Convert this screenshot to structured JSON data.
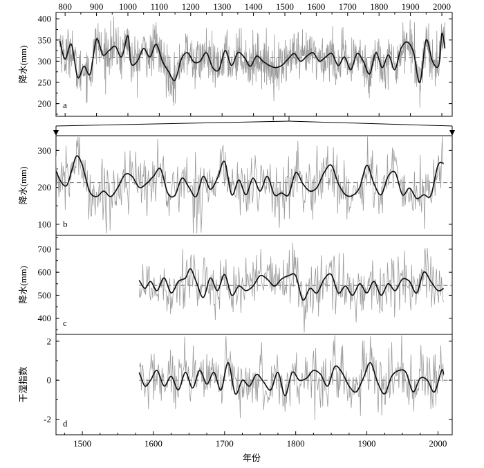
{
  "figure": {
    "top_axis_ticks": [
      "800",
      "900",
      "1000",
      "1100",
      "1200",
      "1300",
      "1400",
      "1500",
      "1600",
      "1700",
      "1800",
      "1900",
      "2000"
    ],
    "bottom_axis_ticks": [
      "1500",
      "1600",
      "1700",
      "1800",
      "1900",
      "2000"
    ],
    "xlabel": "年份"
  },
  "colors": {
    "raw": "#9a9a9a",
    "smooth": "#111111",
    "axis": "#000000",
    "mean_line": "#555555"
  },
  "chart_data": [
    {
      "type": "line",
      "panel_letter": "a",
      "ylabel": "降水(mm)",
      "xlim": [
        770,
        2030
      ],
      "ylim": [
        170,
        415
      ],
      "yticks": [
        200,
        250,
        300,
        350,
        400
      ],
      "mean": 308,
      "series": [
        {
          "style": "annual-raw",
          "x": [],
          "values": []
        },
        {
          "style": "smoothed",
          "x": [
            783,
            800,
            820,
            840,
            860,
            880,
            900,
            920,
            940,
            960,
            980,
            1000,
            1010,
            1030,
            1050,
            1070,
            1090,
            1110,
            1130,
            1150,
            1170,
            1190,
            1210,
            1230,
            1250,
            1270,
            1290,
            1310,
            1330,
            1350,
            1370,
            1390,
            1410,
            1430,
            1450,
            1470,
            1490,
            1510,
            1530,
            1550,
            1570,
            1590,
            1610,
            1630,
            1650,
            1670,
            1690,
            1710,
            1730,
            1750,
            1770,
            1790,
            1810,
            1830,
            1850,
            1870,
            1890,
            1910,
            1930,
            1950,
            1970,
            1990,
            2000,
            2010
          ],
          "values": [
            348,
            305,
            340,
            262,
            288,
            270,
            352,
            315,
            325,
            335,
            310,
            360,
            295,
            300,
            330,
            310,
            340,
            300,
            275,
            255,
            305,
            320,
            298,
            300,
            320,
            285,
            280,
            325,
            290,
            320,
            310,
            288,
            312,
            300,
            290,
            285,
            290,
            305,
            318,
            300,
            312,
            320,
            300,
            310,
            318,
            290,
            310,
            280,
            318,
            300,
            270,
            320,
            285,
            315,
            280,
            330,
            345,
            320,
            250,
            350,
            300,
            290,
            365,
            330
          ]
        }
      ]
    },
    {
      "type": "line",
      "panel_letter": "b",
      "ylabel": "降水(mm)",
      "xlim": [
        1463,
        2020
      ],
      "ylim": [
        70,
        340
      ],
      "yticks": [
        100,
        200,
        300
      ],
      "mean": 213,
      "series": [
        {
          "style": "annual-raw",
          "x": [],
          "values": []
        },
        {
          "style": "smoothed",
          "x": [
            1463,
            1470,
            1478,
            1485,
            1492,
            1500,
            1510,
            1520,
            1530,
            1540,
            1550,
            1560,
            1570,
            1580,
            1590,
            1600,
            1610,
            1620,
            1630,
            1640,
            1650,
            1660,
            1670,
            1680,
            1690,
            1700,
            1710,
            1720,
            1730,
            1740,
            1750,
            1760,
            1770,
            1780,
            1790,
            1800,
            1810,
            1820,
            1830,
            1840,
            1850,
            1860,
            1870,
            1880,
            1890,
            1900,
            1910,
            1920,
            1930,
            1940,
            1950,
            1960,
            1970,
            1980,
            1990,
            2000,
            2008
          ],
          "values": [
            245,
            215,
            205,
            245,
            285,
            260,
            190,
            175,
            190,
            175,
            200,
            235,
            230,
            200,
            210,
            230,
            250,
            185,
            178,
            225,
            200,
            175,
            230,
            195,
            225,
            270,
            180,
            220,
            180,
            225,
            190,
            230,
            180,
            185,
            180,
            240,
            210,
            190,
            200,
            240,
            260,
            210,
            180,
            178,
            200,
            260,
            210,
            180,
            230,
            240,
            180,
            198,
            170,
            180,
            178,
            260,
            265
          ]
        }
      ]
    },
    {
      "type": "line",
      "panel_letter": "c",
      "ylabel": "降水(mm)",
      "xlim": [
        1463,
        2020
      ],
      "ylim": [
        330,
        760
      ],
      "yticks": [
        400,
        500,
        600,
        700
      ],
      "mean": 543,
      "series": [
        {
          "style": "annual-raw",
          "x": [],
          "values": []
        },
        {
          "style": "smoothed",
          "x": [
            1580,
            1588,
            1596,
            1605,
            1615,
            1625,
            1635,
            1645,
            1652,
            1660,
            1670,
            1680,
            1690,
            1700,
            1710,
            1720,
            1730,
            1740,
            1750,
            1760,
            1770,
            1780,
            1790,
            1800,
            1810,
            1820,
            1830,
            1840,
            1850,
            1860,
            1870,
            1880,
            1890,
            1900,
            1910,
            1920,
            1930,
            1940,
            1950,
            1960,
            1970,
            1980,
            1990,
            2000,
            2008
          ],
          "values": [
            565,
            530,
            560,
            520,
            575,
            510,
            560,
            575,
            615,
            560,
            490,
            575,
            520,
            590,
            500,
            540,
            520,
            540,
            585,
            570,
            540,
            570,
            585,
            585,
            480,
            530,
            510,
            570,
            590,
            510,
            540,
            500,
            550,
            510,
            560,
            500,
            550,
            520,
            570,
            560,
            510,
            600,
            560,
            520,
            530
          ]
        }
      ]
    },
    {
      "type": "line",
      "panel_letter": "d",
      "ylabel": "干湿指数",
      "xlim": [
        1463,
        2020
      ],
      "ylim": [
        -2.8,
        2.35
      ],
      "yticks": [
        -2,
        0,
        2
      ],
      "mean": 0,
      "series": [
        {
          "style": "annual-raw",
          "x": [],
          "values": []
        },
        {
          "style": "smoothed",
          "x": [
            1580,
            1588,
            1596,
            1605,
            1615,
            1625,
            1635,
            1645,
            1655,
            1665,
            1675,
            1685,
            1695,
            1705,
            1715,
            1725,
            1735,
            1745,
            1755,
            1765,
            1775,
            1785,
            1795,
            1805,
            1815,
            1825,
            1835,
            1845,
            1855,
            1865,
            1875,
            1885,
            1895,
            1905,
            1915,
            1925,
            1935,
            1945,
            1955,
            1965,
            1975,
            1985,
            1995,
            2005,
            2008
          ],
          "values": [
            0.4,
            -0.3,
            0.0,
            0.5,
            -0.3,
            0.2,
            -0.5,
            0.4,
            -0.4,
            0.5,
            -0.2,
            0.4,
            -0.5,
            0.9,
            -0.7,
            0.0,
            -0.3,
            0.3,
            -0.1,
            -0.5,
            0.4,
            -0.8,
            0.4,
            0.0,
            0.1,
            0.5,
            0.3,
            -0.3,
            0.7,
            0.4,
            -0.3,
            -0.6,
            0.1,
            0.9,
            -0.1,
            -0.7,
            0.2,
            0.5,
            0.4,
            -0.6,
            0.1,
            0.0,
            -0.6,
            0.5,
            0.3
          ]
        }
      ]
    }
  ]
}
